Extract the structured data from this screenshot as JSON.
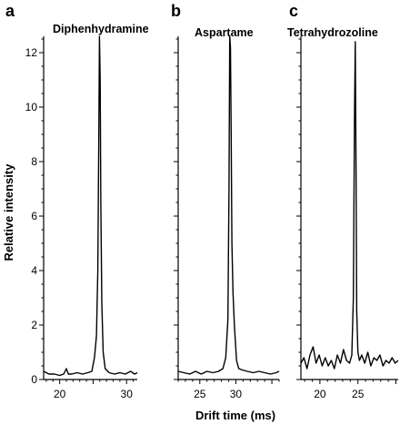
{
  "chart_data": {
    "type": "line",
    "ylabel": "Relative intensity",
    "xlabel": "Drift time (ms)",
    "ylim": [
      0,
      12.6
    ],
    "y_ticks": [
      0,
      2,
      4,
      6,
      8,
      10,
      12
    ],
    "panels": [
      {
        "letter": "a",
        "title": "Diphenhydramine",
        "xlim": [
          17.6,
          31.6
        ],
        "x_ticks": [
          20,
          25,
          30
        ],
        "x_tick_labels": [
          "20",
          "",
          "30"
        ],
        "x": [
          17.6,
          18.4,
          19.2,
          20.0,
          20.6,
          21.0,
          21.3,
          21.8,
          22.6,
          23.4,
          24.2,
          24.8,
          25.2,
          25.5,
          25.7,
          25.85,
          25.95,
          26.05,
          26.15,
          26.3,
          26.5,
          26.8,
          27.4,
          28.2,
          29.0,
          29.8,
          30.6,
          31.2,
          31.6
        ],
        "y": [
          0.3,
          0.2,
          0.2,
          0.15,
          0.2,
          0.4,
          0.2,
          0.2,
          0.25,
          0.2,
          0.25,
          0.3,
          0.8,
          1.6,
          4.0,
          9.0,
          12.6,
          11.0,
          6.5,
          2.8,
          1.0,
          0.4,
          0.25,
          0.2,
          0.25,
          0.2,
          0.3,
          0.2,
          0.25
        ]
      },
      {
        "letter": "b",
        "title": "Aspartame",
        "xlim": [
          22.0,
          36.0
        ],
        "x_ticks": [
          25,
          30,
          35
        ],
        "x_tick_labels": [
          "25",
          "30",
          ""
        ],
        "x": [
          22.0,
          22.8,
          23.6,
          24.4,
          25.2,
          26.0,
          26.8,
          27.6,
          28.2,
          28.6,
          28.9,
          29.05,
          29.15,
          29.25,
          29.35,
          29.45,
          29.6,
          29.8,
          30.1,
          30.4,
          30.9,
          31.6,
          32.4,
          33.2,
          34.0,
          34.8,
          35.6,
          36.0
        ],
        "y": [
          0.3,
          0.25,
          0.2,
          0.3,
          0.2,
          0.3,
          0.25,
          0.3,
          0.4,
          0.8,
          2.2,
          7.0,
          12.6,
          12.2,
          9.0,
          5.0,
          3.2,
          2.0,
          0.7,
          0.4,
          0.35,
          0.3,
          0.25,
          0.3,
          0.25,
          0.2,
          0.25,
          0.3
        ]
      },
      {
        "letter": "c",
        "title": "Tetrahydrozoline",
        "xlim": [
          17.5,
          30.3
        ],
        "x_ticks": [
          20,
          25,
          30
        ],
        "x_tick_labels": [
          "20",
          "25",
          ""
        ],
        "x": [
          17.5,
          17.9,
          18.3,
          18.7,
          19.1,
          19.5,
          19.9,
          20.3,
          20.7,
          21.1,
          21.5,
          21.9,
          22.3,
          22.7,
          23.1,
          23.5,
          23.9,
          24.2,
          24.4,
          24.55,
          24.65,
          24.75,
          24.85,
          25.0,
          25.2,
          25.5,
          25.9,
          26.3,
          26.7,
          27.1,
          27.5,
          27.9,
          28.3,
          28.7,
          29.1,
          29.5,
          29.9,
          30.3
        ],
        "y": [
          0.6,
          0.8,
          0.4,
          0.9,
          1.2,
          0.6,
          0.9,
          0.5,
          0.8,
          0.5,
          0.7,
          0.4,
          0.9,
          0.6,
          1.1,
          0.7,
          0.6,
          0.9,
          3.0,
          9.5,
          12.4,
          8.0,
          2.5,
          1.0,
          0.7,
          0.9,
          0.6,
          1.0,
          0.5,
          0.8,
          0.7,
          0.9,
          0.5,
          0.7,
          0.6,
          0.8,
          0.6,
          0.7
        ]
      }
    ]
  }
}
